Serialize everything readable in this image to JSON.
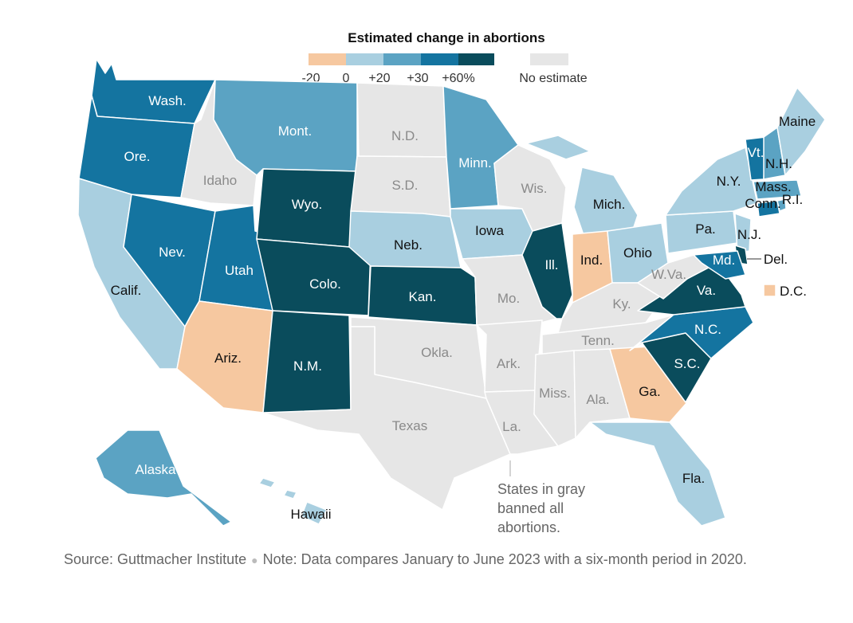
{
  "legend": {
    "title": "Estimated change in abortions",
    "ticks": [
      "-20",
      "0",
      "+20",
      "+30",
      "+60%"
    ],
    "no_estimate": "No estimate"
  },
  "colors": {
    "neg": "#f6c8a0",
    "c0_20": "#a9cfe0",
    "c20_30": "#5ba3c3",
    "c30_60": "#1474a0",
    "c60": "#0a4c5c",
    "gray": "#e6e6e6",
    "gray_text": "#8a8a8a"
  },
  "states": [
    {
      "name": "Wash.",
      "cat": "c30_60"
    },
    {
      "name": "Ore.",
      "cat": "c30_60"
    },
    {
      "name": "Calif.",
      "cat": "c0_20"
    },
    {
      "name": "Idaho",
      "cat": "gray"
    },
    {
      "name": "Nev.",
      "cat": "c30_60"
    },
    {
      "name": "Utah",
      "cat": "c30_60"
    },
    {
      "name": "Ariz.",
      "cat": "neg"
    },
    {
      "name": "Mont.",
      "cat": "c20_30"
    },
    {
      "name": "Wyo.",
      "cat": "c60"
    },
    {
      "name": "Colo.",
      "cat": "c60"
    },
    {
      "name": "N.M.",
      "cat": "c60"
    },
    {
      "name": "N.D.",
      "cat": "gray"
    },
    {
      "name": "S.D.",
      "cat": "gray"
    },
    {
      "name": "Neb.",
      "cat": "c0_20"
    },
    {
      "name": "Kan.",
      "cat": "c60"
    },
    {
      "name": "Okla.",
      "cat": "gray"
    },
    {
      "name": "Texas",
      "cat": "gray"
    },
    {
      "name": "Minn.",
      "cat": "c20_30"
    },
    {
      "name": "Iowa",
      "cat": "c0_20"
    },
    {
      "name": "Mo.",
      "cat": "gray"
    },
    {
      "name": "Ark.",
      "cat": "gray"
    },
    {
      "name": "La.",
      "cat": "gray"
    },
    {
      "name": "Wis.",
      "cat": "gray"
    },
    {
      "name": "Ill.",
      "cat": "c60"
    },
    {
      "name": "Mich.",
      "cat": "c0_20"
    },
    {
      "name": "Ind.",
      "cat": "neg"
    },
    {
      "name": "Ohio",
      "cat": "c0_20"
    },
    {
      "name": "Ky.",
      "cat": "gray"
    },
    {
      "name": "Tenn.",
      "cat": "gray"
    },
    {
      "name": "Miss.",
      "cat": "gray"
    },
    {
      "name": "Ala.",
      "cat": "gray"
    },
    {
      "name": "Ga.",
      "cat": "neg"
    },
    {
      "name": "Fla.",
      "cat": "c0_20"
    },
    {
      "name": "S.C.",
      "cat": "c60"
    },
    {
      "name": "N.C.",
      "cat": "c30_60"
    },
    {
      "name": "Va.",
      "cat": "c60"
    },
    {
      "name": "W.Va.",
      "cat": "gray"
    },
    {
      "name": "Pa.",
      "cat": "c0_20"
    },
    {
      "name": "N.Y.",
      "cat": "c0_20"
    },
    {
      "name": "N.J.",
      "cat": "c0_20"
    },
    {
      "name": "Del.",
      "cat": "c60"
    },
    {
      "name": "Md.",
      "cat": "c30_60"
    },
    {
      "name": "Conn.",
      "cat": "c30_60"
    },
    {
      "name": "R.I.",
      "cat": "c20_30"
    },
    {
      "name": "Mass.",
      "cat": "c20_30"
    },
    {
      "name": "Vt.",
      "cat": "c30_60"
    },
    {
      "name": "N.H.",
      "cat": "c20_30"
    },
    {
      "name": "Maine",
      "cat": "c0_20"
    },
    {
      "name": "Alaska",
      "cat": "c20_30"
    },
    {
      "name": "Hawaii",
      "cat": "c0_20"
    },
    {
      "name": "D.C.",
      "cat": "neg"
    }
  ],
  "annotation": [
    "States in gray",
    "banned all",
    "abortions."
  ],
  "footer": {
    "source": "Source: Guttmacher Institute",
    "note": "Note: Data compares January to June 2023 with a six-month period in 2020."
  }
}
